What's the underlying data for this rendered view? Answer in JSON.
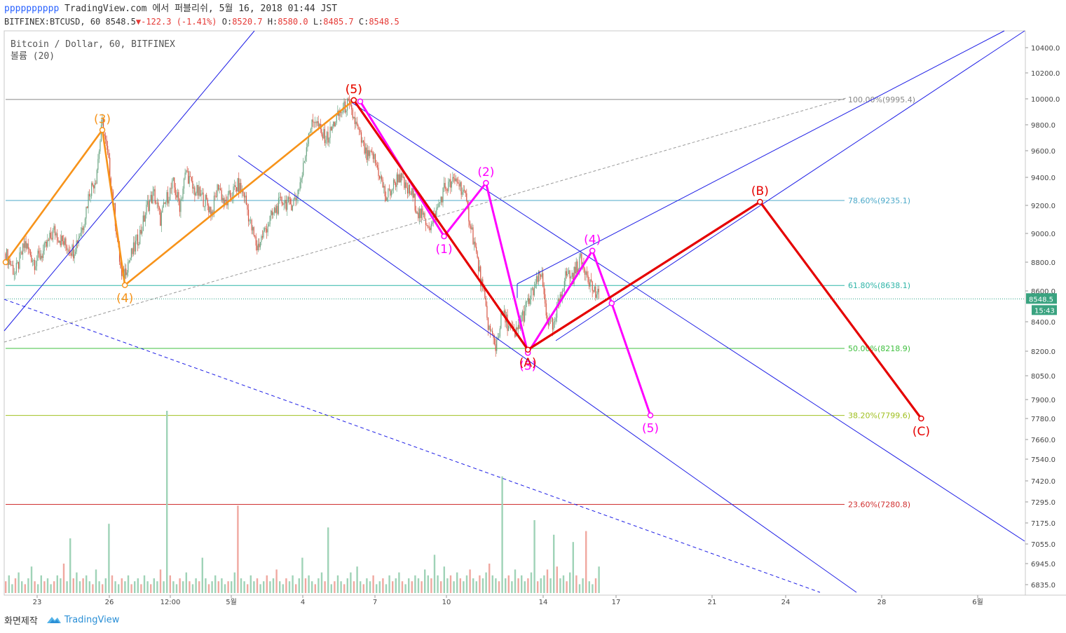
{
  "header": {
    "username": "pppppppppp",
    "publish_text": "TradingView.com 에서 퍼블리쉬, 5월 16, 2018 01:44 JST",
    "symbol_interval": "BITFINEX:BTCUSD, 60",
    "last": "8548.5",
    "change": "-122.3",
    "change_pct": "(-1.41%)",
    "open_label": "O:",
    "open": "8520.7",
    "high_label": "H:",
    "high": "8580.0",
    "low_label": "L:",
    "low": "8485.7",
    "close_label": "C:",
    "close": "8548.5"
  },
  "legend": {
    "title": "Bitcoin / Dollar, 60, BITFINEX",
    "volume_label": "볼륨 (20)"
  },
  "footer": {
    "made_with": "화면제작",
    "brand": "TradingView"
  },
  "colors": {
    "up": "#6ba583",
    "down": "#d75442",
    "impulse_orange": "#f7931a",
    "wave_magenta": "#ff00ff",
    "abc_red": "#e50000",
    "channel_blue": "#1e1ee6"
  },
  "chart_data": {
    "type": "candlestick",
    "symbol": "BITFINEX:BTCUSD",
    "interval": "60",
    "y_axis": {
      "range": [
        6780,
        10560
      ],
      "ticks": [
        "10400.0",
        "10200.0",
        "10000.0",
        "9800.0",
        "9600.0",
        "9400.0",
        "9200.0",
        "9000.0",
        "8800.0",
        "8600.0",
        "8400.0",
        "8200.0",
        "8050.0",
        "7900.0",
        "7780.0",
        "7660.0",
        "7540.0",
        "7420.0",
        "7295.0",
        "7175.0",
        "7055.0",
        "6945.0",
        "6835.0"
      ]
    },
    "x_axis": {
      "tick_labels": [
        "23",
        "26",
        "12:00",
        "5월",
        "4",
        "7",
        "10",
        "14",
        "17",
        "21",
        "24",
        "28",
        "6월"
      ]
    },
    "last_price": {
      "value": 8548.5,
      "label": "8548.5",
      "countdown": "15:43"
    },
    "price_path": [
      [
        0,
        8860
      ],
      [
        3,
        8720
      ],
      [
        6,
        8930
      ],
      [
        9,
        8800
      ],
      [
        12,
        8880
      ],
      [
        15,
        9020
      ],
      [
        18,
        8930
      ],
      [
        21,
        8880
      ],
      [
        24,
        9060
      ],
      [
        26,
        9300
      ],
      [
        28,
        9400
      ],
      [
        30,
        9820
      ],
      [
        32,
        9500
      ],
      [
        34,
        9100
      ],
      [
        36,
        8680
      ],
      [
        38,
        8800
      ],
      [
        40,
        8900
      ],
      [
        42,
        9020
      ],
      [
        44,
        9200
      ],
      [
        46,
        9280
      ],
      [
        48,
        9100
      ],
      [
        50,
        9250
      ],
      [
        52,
        9350
      ],
      [
        54,
        9200
      ],
      [
        56,
        9450
      ],
      [
        58,
        9320
      ],
      [
        60,
        9280
      ],
      [
        62,
        9230
      ],
      [
        64,
        9150
      ],
      [
        66,
        9350
      ],
      [
        68,
        9200
      ],
      [
        70,
        9280
      ],
      [
        72,
        9340
      ],
      [
        74,
        9280
      ],
      [
        76,
        9060
      ],
      [
        78,
        8900
      ],
      [
        80,
        9000
      ],
      [
        82,
        9100
      ],
      [
        84,
        9180
      ],
      [
        86,
        9240
      ],
      [
        88,
        9200
      ],
      [
        90,
        9250
      ],
      [
        92,
        9420
      ],
      [
        94,
        9750
      ],
      [
        96,
        9850
      ],
      [
        98,
        9720
      ],
      [
        100,
        9700
      ],
      [
        102,
        9820
      ],
      [
        104,
        9900
      ],
      [
        106,
        9960
      ],
      [
        108,
        9850
      ],
      [
        110,
        9700
      ],
      [
        112,
        9550
      ],
      [
        114,
        9560
      ],
      [
        116,
        9420
      ],
      [
        118,
        9250
      ],
      [
        120,
        9330
      ],
      [
        122,
        9420
      ],
      [
        124,
        9320
      ],
      [
        126,
        9280
      ],
      [
        128,
        9150
      ],
      [
        130,
        9100
      ],
      [
        132,
        9050
      ],
      [
        134,
        9180
      ],
      [
        136,
        9320
      ],
      [
        138,
        9350
      ],
      [
        140,
        9380
      ],
      [
        142,
        9300
      ],
      [
        144,
        9100
      ],
      [
        146,
        8850
      ],
      [
        148,
        8600
      ],
      [
        150,
        8350
      ],
      [
        152,
        8230
      ],
      [
        154,
        8450
      ],
      [
        156,
        8380
      ],
      [
        158,
        8300
      ],
      [
        160,
        8420
      ],
      [
        162,
        8520
      ],
      [
        164,
        8620
      ],
      [
        166,
        8720
      ],
      [
        168,
        8420
      ],
      [
        170,
        8350
      ],
      [
        172,
        8580
      ],
      [
        174,
        8720
      ],
      [
        176,
        8700
      ],
      [
        178,
        8820
      ],
      [
        180,
        8750
      ],
      [
        182,
        8620
      ],
      [
        184,
        8548.5
      ]
    ],
    "volume_pattern": [
      4,
      6,
      3,
      5,
      7,
      4,
      3,
      5,
      9,
      4,
      3,
      6,
      4,
      5,
      3,
      4,
      6,
      5,
      10,
      4,
      3,
      5,
      7,
      4,
      5,
      6,
      4,
      3,
      8,
      4,
      3,
      5,
      14,
      6,
      4,
      3,
      5,
      4,
      6,
      3,
      4,
      5,
      3,
      6,
      4,
      3,
      5,
      4,
      8,
      4,
      3,
      6,
      4,
      3,
      5,
      4,
      7,
      4,
      3,
      5,
      4,
      12,
      5,
      3,
      4,
      6,
      4,
      5,
      3,
      4,
      4,
      7,
      3,
      5,
      4,
      3,
      6,
      4,
      5,
      3,
      4,
      6,
      4,
      5,
      8,
      4,
      3,
      5,
      4,
      6,
      3,
      5,
      12,
      5,
      6,
      4,
      3,
      5,
      7,
      4,
      5,
      3,
      4,
      6,
      4,
      3,
      5,
      7,
      4,
      9,
      4,
      3,
      5,
      4,
      6,
      3,
      4,
      5,
      3,
      6,
      4,
      5,
      7,
      4,
      3,
      5,
      4,
      6,
      5,
      4,
      8,
      6,
      5,
      13,
      6,
      4,
      9,
      5,
      6,
      4,
      7,
      5,
      4,
      6,
      8,
      5,
      4,
      6,
      5,
      7,
      10,
      6,
      5,
      4,
      7,
      5,
      6,
      4,
      8,
      5,
      6,
      4,
      5,
      7,
      6,
      4,
      5,
      6,
      8,
      5,
      4,
      9,
      5,
      6,
      4,
      7
    ],
    "volume_spikes": [
      [
        20,
        30
      ],
      [
        32,
        38
      ],
      [
        50,
        100
      ],
      [
        72,
        48
      ],
      [
        100,
        36
      ],
      [
        154,
        64
      ],
      [
        164,
        40
      ],
      [
        170,
        32
      ],
      [
        176,
        28
      ],
      [
        180,
        34
      ]
    ],
    "fib_levels": [
      {
        "pct": "100.00%",
        "label": "100.00%(9995.4)",
        "price": 9995.4,
        "color": "#888888"
      },
      {
        "pct": "78.60%",
        "label": "78.60%(9235.1)",
        "price": 9235.1,
        "color": "#4ca9c9"
      },
      {
        "pct": "61.80%",
        "label": "61.80%(8638.1)",
        "price": 8638.1,
        "color": "#2fb5a8"
      },
      {
        "pct": "50.00%",
        "label": "50.00%(8218.9)",
        "price": 8218.9,
        "color": "#40c040"
      },
      {
        "pct": "38.20%",
        "label": "38.20%(7799.6)",
        "price": 7799.6,
        "color": "#a0c020"
      },
      {
        "pct": "23.60%",
        "label": "23.60%(7280.8)",
        "price": 7280.8,
        "color": "#d03030"
      }
    ],
    "annotations": {
      "impulse_up": [
        {
          "label": "",
          "bar": 0,
          "price": 8800
        },
        {
          "label": "(3)",
          "bar": 30,
          "price": 9760
        },
        {
          "label": "(4)",
          "bar": 37,
          "price": 8640
        },
        {
          "label": "(5)",
          "bar": 108,
          "price": 9990
        }
      ],
      "abc": [
        {
          "label": "(5)",
          "bar": 108,
          "price": 9990
        },
        {
          "label": "(A)",
          "bar": 162,
          "price": 8210
        },
        {
          "label": "(B)",
          "bar": 234,
          "price": 9225
        },
        {
          "label": "(C)",
          "bar": 284,
          "price": 7780
        }
      ],
      "impulse_down": [
        {
          "label": "",
          "bar": 110,
          "price": 9980
        },
        {
          "label": "(1)",
          "bar": 136,
          "price": 8980
        },
        {
          "label": "(2)",
          "bar": 149,
          "price": 9360
        },
        {
          "label": "(3)",
          "bar": 162,
          "price": 8190
        },
        {
          "label": "(4)",
          "bar": 182,
          "price": 8880
        },
        {
          "label": "",
          "bar": 188,
          "price": 8520
        },
        {
          "label": "(5)",
          "bar": 200,
          "price": 7800
        }
      ]
    }
  }
}
